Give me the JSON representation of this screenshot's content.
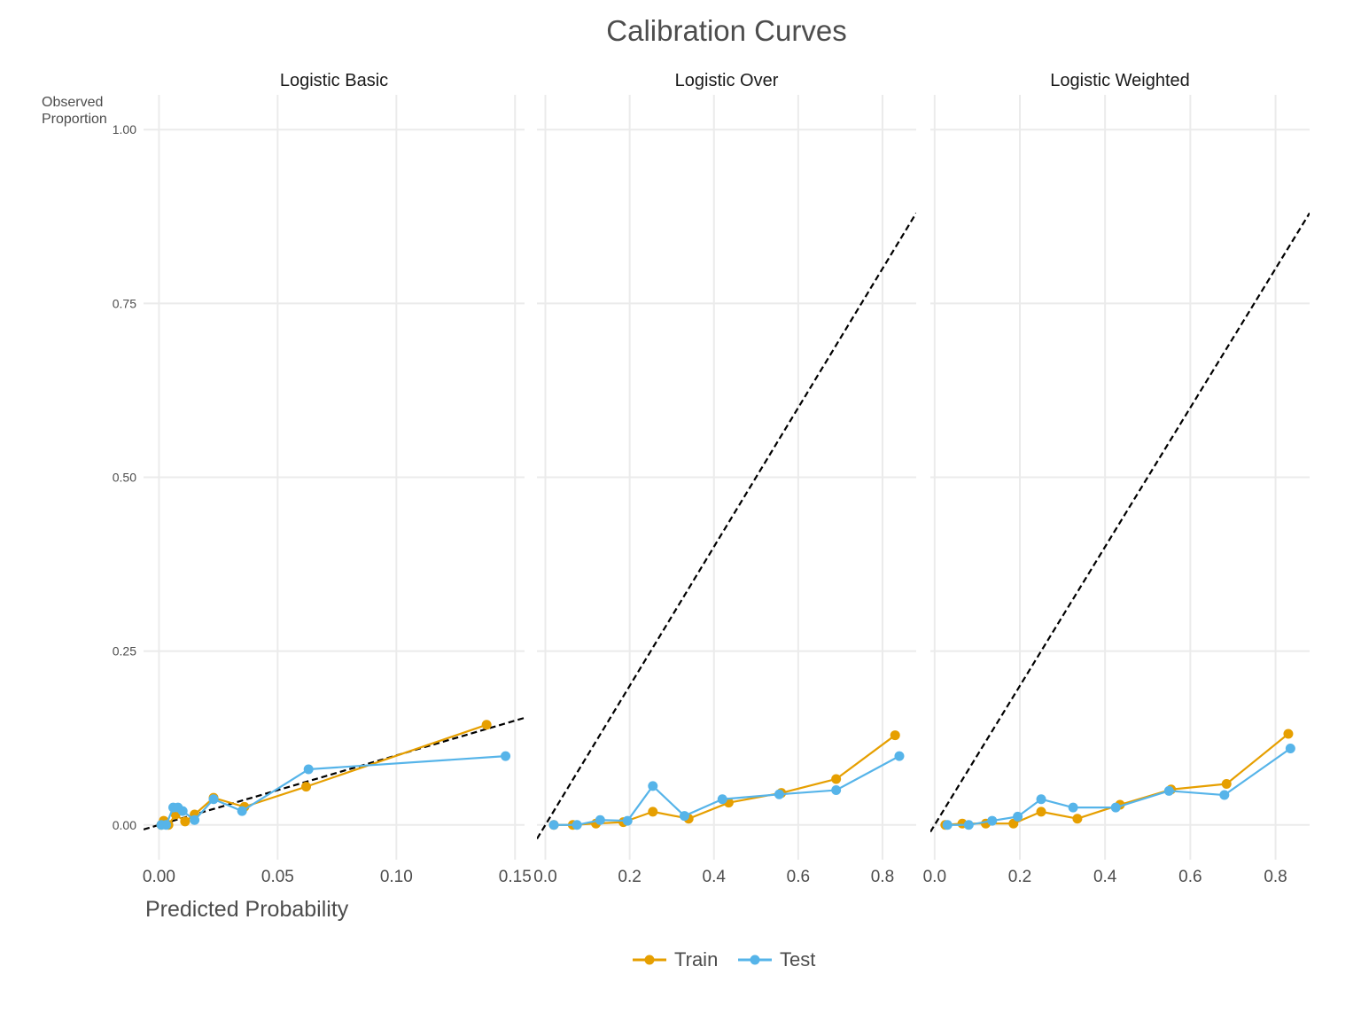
{
  "chart_data": {
    "type": "line",
    "title": "Calibration Curves",
    "xlabel": "Predicted Probability",
    "ylabel": "Observed\nProportion",
    "ylim": [
      -0.05,
      1.05
    ],
    "yticks": [
      0,
      0.25,
      0.5,
      0.75,
      1.0
    ],
    "ytick_labels": [
      "0.00",
      "0.25",
      "0.50",
      "0.75",
      "1.00"
    ],
    "grid": true,
    "legend": {
      "position": "bottom",
      "entries": [
        "Train",
        "Test"
      ]
    },
    "reference_line": "y = x (dashed)",
    "colors": {
      "Train": "#E69F00",
      "Test": "#56B4E9",
      "reference": "#000000",
      "grid": "#ebebeb"
    },
    "facets": [
      {
        "name": "Logistic Basic",
        "xlim": [
          -0.0065,
          0.154
        ],
        "xticks": [
          0,
          0.05,
          0.1,
          0.15
        ],
        "xtick_labels": [
          "0.00",
          "0.05",
          "0.10",
          "0.15"
        ],
        "series": [
          {
            "name": "Train",
            "x": [
              0.001,
              0.002,
              0.004,
              0.007,
              0.011,
              0.015,
              0.023,
              0.036,
              0.062,
              0.138
            ],
            "y": [
              0.0,
              0.006,
              0.0,
              0.015,
              0.005,
              0.015,
              0.039,
              0.026,
              0.055,
              0.144
            ]
          },
          {
            "name": "Test",
            "x": [
              0.001,
              0.003,
              0.006,
              0.008,
              0.01,
              0.015,
              0.023,
              0.035,
              0.063,
              0.146
            ],
            "y": [
              0.0,
              0.0,
              0.025,
              0.025,
              0.02,
              0.007,
              0.037,
              0.02,
              0.08,
              0.099
            ]
          }
        ]
      },
      {
        "name": "Logistic Over",
        "xlim": [
          -0.02,
          0.88
        ],
        "xticks": [
          0,
          0.2,
          0.4,
          0.6,
          0.8
        ],
        "xtick_labels": [
          "0.0",
          "0.2",
          "0.4",
          "0.6",
          "0.8"
        ],
        "series": [
          {
            "name": "Train",
            "x": [
              0.02,
              0.065,
              0.12,
              0.185,
              0.255,
              0.34,
              0.435,
              0.56,
              0.69,
              0.83
            ],
            "y": [
              0.0,
              0.0,
              0.002,
              0.004,
              0.019,
              0.009,
              0.032,
              0.046,
              0.066,
              0.129
            ]
          },
          {
            "name": "Test",
            "x": [
              0.02,
              0.075,
              0.13,
              0.195,
              0.255,
              0.33,
              0.42,
              0.555,
              0.69,
              0.84
            ],
            "y": [
              0.0,
              0.0,
              0.007,
              0.006,
              0.056,
              0.013,
              0.037,
              0.044,
              0.05,
              0.099
            ]
          }
        ]
      },
      {
        "name": "Logistic Weighted",
        "xlim": [
          -0.01,
          0.88
        ],
        "xticks": [
          0,
          0.2,
          0.4,
          0.6,
          0.8
        ],
        "xtick_labels": [
          "0.0",
          "0.2",
          "0.4",
          "0.6",
          "0.8"
        ],
        "series": [
          {
            "name": "Train",
            "x": [
              0.025,
              0.065,
              0.12,
              0.185,
              0.25,
              0.335,
              0.435,
              0.555,
              0.685,
              0.83
            ],
            "y": [
              0.0,
              0.002,
              0.002,
              0.002,
              0.019,
              0.009,
              0.029,
              0.051,
              0.059,
              0.131
            ]
          },
          {
            "name": "Test",
            "x": [
              0.03,
              0.08,
              0.135,
              0.195,
              0.25,
              0.325,
              0.425,
              0.55,
              0.68,
              0.835
            ],
            "y": [
              0.0,
              0.0,
              0.006,
              0.012,
              0.037,
              0.025,
              0.025,
              0.049,
              0.043,
              0.11
            ]
          }
        ]
      }
    ]
  }
}
